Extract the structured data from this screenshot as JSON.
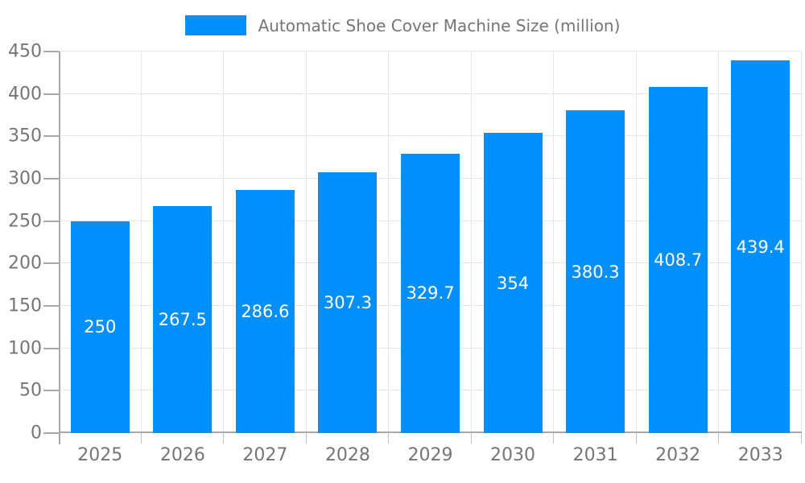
{
  "chart_data": {
    "type": "bar",
    "title": "Automatic Shoe Cover Machine Size (million)",
    "categories": [
      "2025",
      "2026",
      "2027",
      "2028",
      "2029",
      "2030",
      "2031",
      "2032",
      "2033"
    ],
    "values": [
      250,
      267.5,
      286.6,
      307.3,
      329.7,
      354,
      380.3,
      408.7,
      439.4
    ],
    "value_labels": [
      "250",
      "267.5",
      "286.6",
      "307.3",
      "329.7",
      "354",
      "380.3",
      "408.7",
      "439.4"
    ],
    "xlabel": "",
    "ylabel": "",
    "ylim": [
      0,
      450
    ],
    "ytick_step": 50,
    "ytick_labels": [
      "0",
      "50",
      "100",
      "150",
      "200",
      "250",
      "300",
      "350",
      "400",
      "450"
    ],
    "grid": true,
    "legend_position": "top",
    "value_label_position": "center-inside",
    "colors": {
      "bar": "#008FFB",
      "grid": "#e7e7e7",
      "axis": "#a8a8a8",
      "tick_label": "#757575",
      "legend_text": "#757575",
      "value_label": "#ffffff",
      "background": "#ffffff"
    }
  }
}
